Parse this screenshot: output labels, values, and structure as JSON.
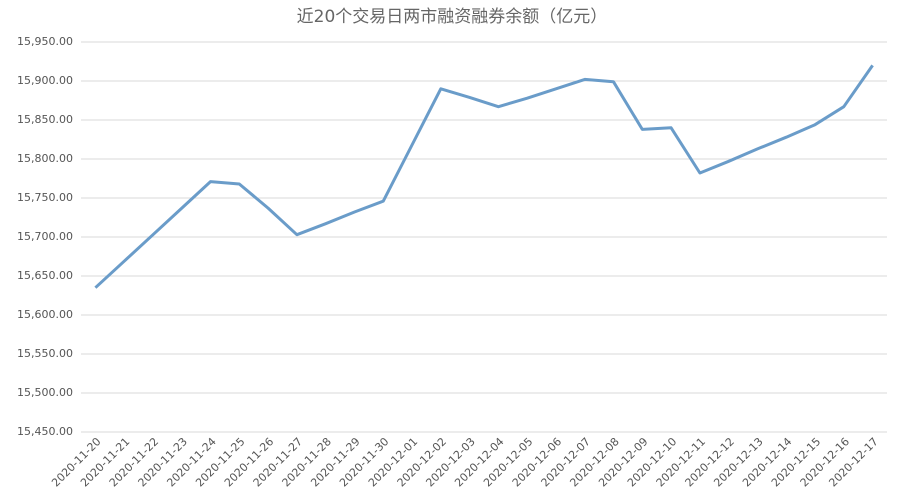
{
  "chart_data": {
    "type": "line",
    "title": "近20个交易日两市融资融券余额（亿元）",
    "categories": [
      "2020-11-20",
      "2020-11-21",
      "2020-11-22",
      "2020-11-23",
      "2020-11-24",
      "2020-11-25",
      "2020-11-26",
      "2020-11-27",
      "2020-11-28",
      "2020-11-29",
      "2020-11-30",
      "2020-12-01",
      "2020-12-02",
      "2020-12-03",
      "2020-12-04",
      "2020-12-05",
      "2020-12-06",
      "2020-12-07",
      "2020-12-08",
      "2020-12-09",
      "2020-12-10",
      "2020-12-11",
      "2020-12-12",
      "2020-12-13",
      "2020-12-14",
      "2020-12-15",
      "2020-12-16",
      "2020-12-17"
    ],
    "values": [
      15635,
      15669,
      15703,
      15737,
      15771,
      15768,
      15737,
      15703,
      15717,
      15732,
      15746,
      15818,
      15890,
      15879,
      15867,
      15878,
      15890,
      15902,
      15899,
      15838,
      15840,
      15782,
      15797,
      15813,
      15828,
      15844,
      15867,
      15920
    ],
    "color": "#6a9cc9",
    "ylim": [
      15450,
      15950
    ],
    "yticks": [
      {
        "value": 15450,
        "label": "15,450.00"
      },
      {
        "value": 15500,
        "label": "15,500.00"
      },
      {
        "value": 15550,
        "label": "15,550.00"
      },
      {
        "value": 15600,
        "label": "15,600.00"
      },
      {
        "value": 15650,
        "label": "15,650.00"
      },
      {
        "value": 15700,
        "label": "15,700.00"
      },
      {
        "value": 15750,
        "label": "15,750.00"
      },
      {
        "value": 15800,
        "label": "15,800.00"
      },
      {
        "value": 15850,
        "label": "15,850.00"
      },
      {
        "value": 15900,
        "label": "15,900.00"
      },
      {
        "value": 15950,
        "label": "15,950.00"
      }
    ],
    "grid": true
  }
}
